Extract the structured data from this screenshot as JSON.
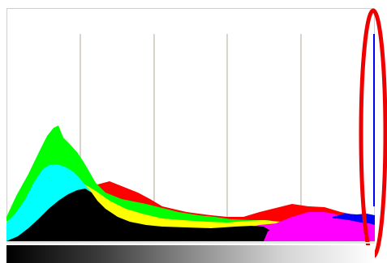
{
  "histogram": {
    "channels": {
      "green": {
        "color": "#00ff00"
      },
      "cyan": {
        "color": "#00ffff"
      },
      "red": {
        "color": "#ff0000"
      },
      "yellow": {
        "color": "#ffff00"
      },
      "magenta": {
        "color": "#ff00ff"
      },
      "blue": {
        "color": "#0000ff"
      },
      "luminance": {
        "color": "#000000"
      }
    },
    "grid_line_count": 4,
    "grid_color": "#b0a898",
    "clipping_marker_color": "#0000ff",
    "highlight_ellipse_color": "#ee0000"
  }
}
